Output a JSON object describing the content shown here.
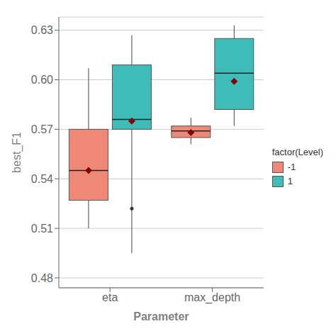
{
  "chart_data": {
    "type": "box",
    "xlabel": "Parameter",
    "ylabel": "best_F1",
    "categories": [
      "eta",
      "max_depth"
    ],
    "series": [
      {
        "name": "-1",
        "color": "#F08878",
        "q1": [
          0.527,
          0.565
        ],
        "median": [
          0.545,
          0.569
        ],
        "q3": [
          0.57,
          0.572
        ],
        "whisker_low": [
          0.51,
          0.561
        ],
        "whisker_high": [
          0.607,
          0.577
        ],
        "mean": [
          0.545,
          0.568
        ],
        "outliers": [
          [],
          []
        ]
      },
      {
        "name": "1",
        "color": "#3DBCB8",
        "q1": [
          0.57,
          0.582
        ],
        "median": [
          0.576,
          0.604
        ],
        "q3": [
          0.609,
          0.625
        ],
        "whisker_low": [
          0.495,
          0.572
        ],
        "whisker_high": [
          0.627,
          0.633
        ],
        "mean": [
          0.575,
          0.599
        ],
        "outliers": [
          [
            0.522
          ],
          []
        ]
      }
    ],
    "ylim": [
      0.474,
      0.638
    ],
    "yticks": [
      0.48,
      0.51,
      0.54,
      0.57,
      {
        "value": 0.6,
        "label": "0.60"
      },
      0.63
    ],
    "grid": true,
    "legend": "right",
    "legend_title": "factor(Level)",
    "marker": "diamond",
    "mean_color": "#8B0000",
    "outlier_color": "#333333"
  }
}
